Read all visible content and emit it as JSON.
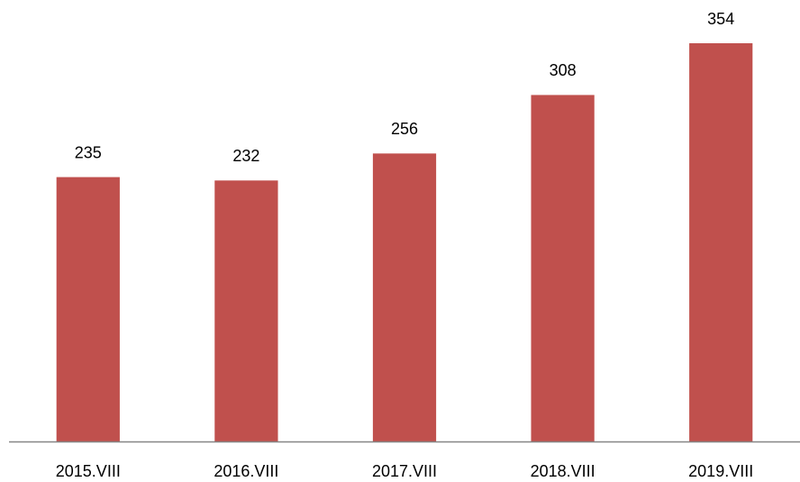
{
  "chart_data": {
    "type": "bar",
    "categories": [
      "2015.VIII",
      "2016.VIII",
      "2017.VIII",
      "2018.VIII",
      "2019.VIII"
    ],
    "values": [
      235,
      232,
      256,
      308,
      354
    ],
    "color": "#c0504d"
  }
}
